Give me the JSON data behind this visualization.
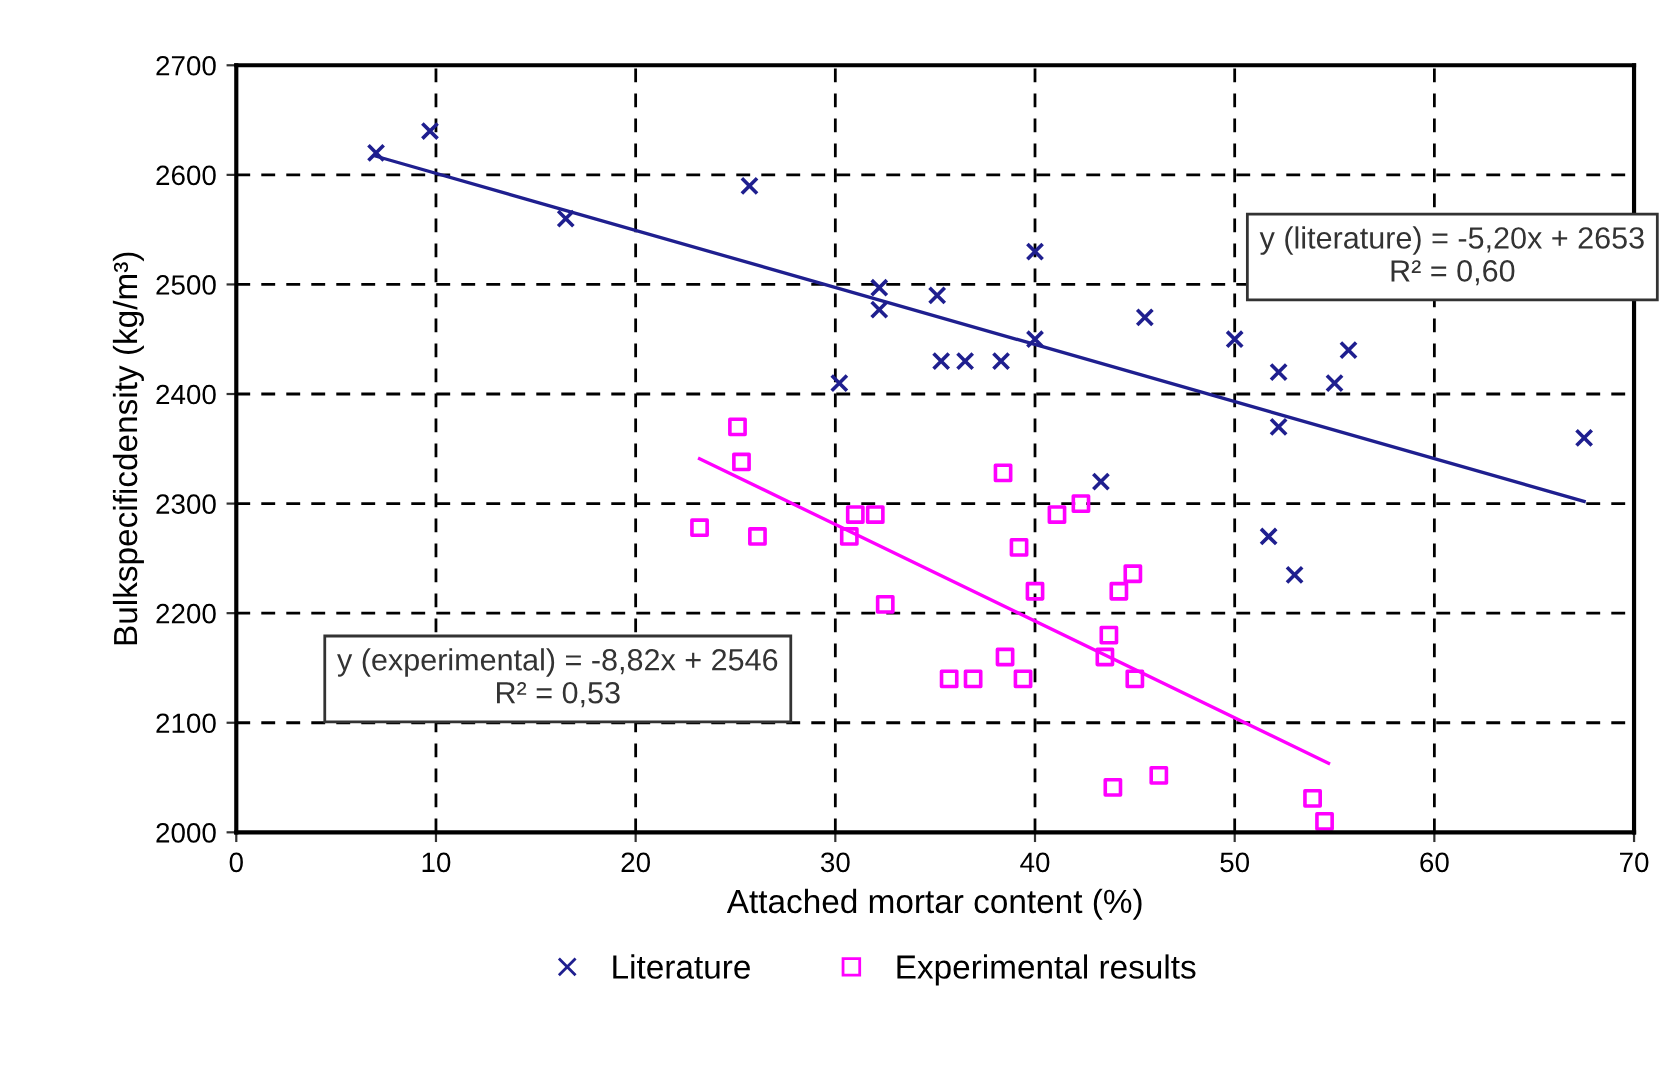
{
  "chart_data": {
    "type": "scatter",
    "xlabel": "Attached mortar content (%)",
    "ylabel": "Bulkspecificdensity (kg/m³)",
    "xlim": [
      0,
      70
    ],
    "xticks": [
      0,
      10,
      20,
      30,
      40,
      50,
      60,
      70
    ],
    "ylim": [
      2000,
      2700
    ],
    "yticks": [
      2000,
      2100,
      2200,
      2300,
      2400,
      2500,
      2600,
      2700
    ],
    "grid": true,
    "legend": "bottom",
    "series": [
      {
        "name": "Literature",
        "marker": "cross",
        "color": "#1f1f8f",
        "x": [
          7.0,
          9.7,
          16.5,
          25.7,
          32.2,
          32.2,
          30.2,
          35.1,
          35.3,
          36.5,
          38.3,
          40.0,
          40.0,
          45.5,
          50.0,
          52.2,
          55.0,
          55.7,
          52.2,
          67.5,
          43.3,
          51.7,
          53.0
        ],
        "values": [
          2620,
          2640,
          2560,
          2590,
          2497,
          2477,
          2410,
          2490,
          2430,
          2430,
          2430,
          2530,
          2450,
          2470,
          2450,
          2420,
          2410,
          2440,
          2370,
          2360,
          2320,
          2270,
          2235
        ]
      },
      {
        "name": "Experimental results",
        "marker": "square",
        "color": "#ff00ff",
        "x": [
          25.1,
          25.3,
          23.2,
          26.1,
          31.0,
          32.0,
          30.7,
          32.5,
          38.4,
          41.1,
          42.3,
          39.2,
          40.0,
          44.2,
          44.9,
          43.7,
          43.5,
          38.5,
          35.7,
          36.9,
          39.4,
          45.0,
          43.9,
          46.2,
          53.9,
          54.5
        ],
        "values": [
          2370,
          2338,
          2278,
          2270,
          2290,
          2290,
          2270,
          2208,
          2328,
          2290,
          2300,
          2260,
          2220,
          2220,
          2236,
          2180,
          2160,
          2160,
          2140,
          2140,
          2140,
          2140,
          2041,
          2052,
          2031,
          2010
        ]
      },
      {
        "type": "line",
        "color": "#1f1f8f",
        "x": [
          7.0,
          67.5
        ],
        "values": [
          2617,
          2302
        ]
      },
      {
        "type": "line",
        "color": "#ff00ff",
        "x": [
          23.2,
          54.7
        ],
        "values": [
          2341,
          2063
        ]
      }
    ],
    "annotations": [
      "y (literature) = -5,20x + 2653\nR² = 0,60",
      "y (experimental) = -8,82x + 2546\nR² = 0,53"
    ]
  }
}
